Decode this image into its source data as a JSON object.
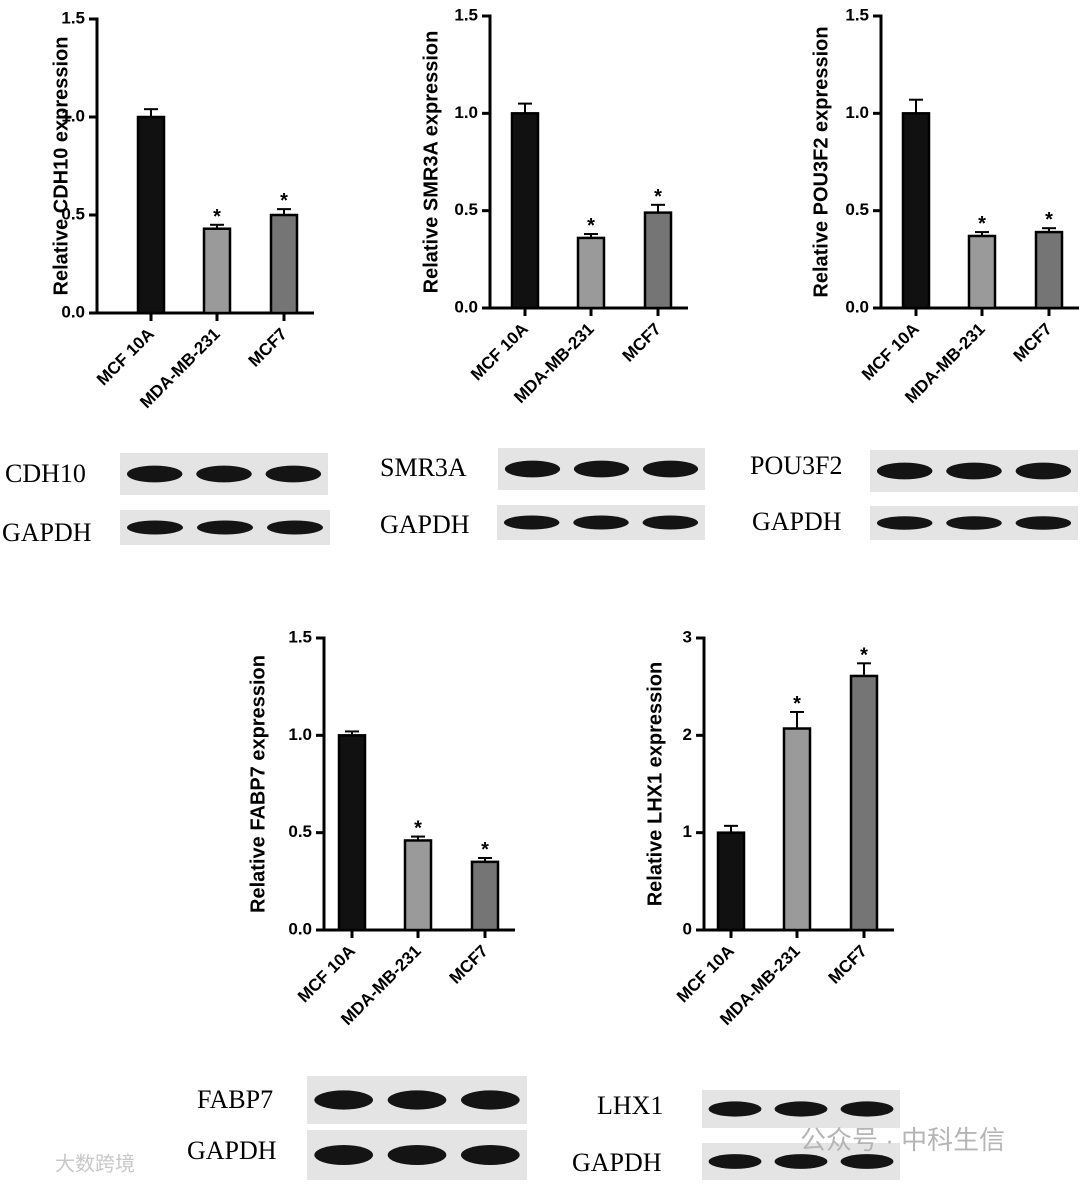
{
  "chart_data": [
    {
      "type": "bar",
      "ylabel": "Relative CDH10 expression",
      "categories": [
        "MCF 10A",
        "MDA-MB-231",
        "MCF7"
      ],
      "values": [
        1.0,
        0.43,
        0.5
      ],
      "errors": [
        0.04,
        0.02,
        0.03
      ],
      "significance": [
        null,
        "*",
        "*"
      ],
      "colors": [
        "#111111",
        "#9a9a9a",
        "#757575"
      ],
      "ylim": [
        0,
        1.5
      ],
      "yticks": [
        {
          "value": 0,
          "label": "0.0"
        },
        0.5,
        {
          "value": 1,
          "label": "1.0"
        },
        1.5
      ]
    },
    {
      "type": "bar",
      "ylabel": "Relative SMR3A expression",
      "categories": [
        "MCF 10A",
        "MDA-MB-231",
        "MCF7"
      ],
      "values": [
        1.0,
        0.36,
        0.49
      ],
      "errors": [
        0.05,
        0.02,
        0.04
      ],
      "significance": [
        null,
        "*",
        "*"
      ],
      "colors": [
        "#111111",
        "#9a9a9a",
        "#757575"
      ],
      "ylim": [
        0,
        1.5
      ],
      "yticks": [
        {
          "value": 0,
          "label": "0.0"
        },
        0.5,
        {
          "value": 1,
          "label": "1.0"
        },
        1.5
      ]
    },
    {
      "type": "bar",
      "ylabel": "Relative POU3F2 expression",
      "categories": [
        "MCF 10A",
        "MDA-MB-231",
        "MCF7"
      ],
      "values": [
        1.0,
        0.37,
        0.39
      ],
      "errors": [
        0.07,
        0.02,
        0.02
      ],
      "significance": [
        null,
        "*",
        "*"
      ],
      "colors": [
        "#111111",
        "#9a9a9a",
        "#757575"
      ],
      "ylim": [
        0,
        1.5
      ],
      "yticks": [
        {
          "value": 0,
          "label": "0.0"
        },
        0.5,
        {
          "value": 1,
          "label": "1.0"
        },
        1.5
      ]
    },
    {
      "type": "bar",
      "ylabel": "Relative FABP7 expression",
      "categories": [
        "MCF 10A",
        "MDA-MB-231",
        "MCF7"
      ],
      "values": [
        1.0,
        0.46,
        0.35
      ],
      "errors": [
        0.02,
        0.02,
        0.02
      ],
      "significance": [
        null,
        "*",
        "*"
      ],
      "colors": [
        "#111111",
        "#9a9a9a",
        "#757575"
      ],
      "ylim": [
        0,
        1.5
      ],
      "yticks": [
        {
          "value": 0,
          "label": "0.0"
        },
        0.5,
        {
          "value": 1,
          "label": "1.0"
        },
        1.5
      ]
    },
    {
      "type": "bar",
      "ylabel": "Relative LHX1 expression",
      "categories": [
        "MCF 10A",
        "MDA-MB-231",
        "MCF7"
      ],
      "values": [
        1.0,
        2.07,
        2.61
      ],
      "errors": [
        0.07,
        0.17,
        0.13
      ],
      "significance": [
        null,
        "*",
        "*"
      ],
      "colors": [
        "#111111",
        "#9a9a9a",
        "#757575"
      ],
      "ylim": [
        0,
        3
      ],
      "yticks": [
        0,
        1,
        2,
        3
      ]
    }
  ],
  "blots": [
    {
      "target": "CDH10",
      "control": "GAPDH"
    },
    {
      "target": "SMR3A",
      "control": "GAPDH"
    },
    {
      "target": "POU3F2",
      "control": "GAPDH"
    },
    {
      "target": "FABP7",
      "control": "GAPDH"
    },
    {
      "target": "LHX1",
      "control": "GAPDH"
    }
  ],
  "watermarks": [
    "公众号 · 中科生信",
    "大数跨境"
  ]
}
